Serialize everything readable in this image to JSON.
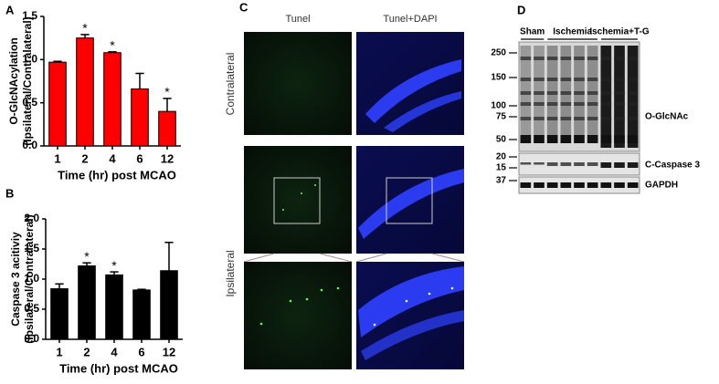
{
  "chart_data": [
    {
      "type": "bar",
      "panel": "A",
      "ylabel": [
        "O-GlcNAcylation",
        "(Ipsilateral/Contralateral)"
      ],
      "xlabel": "Time (hr) post MCAO",
      "categories": [
        "1",
        "2",
        "4",
        "6",
        "12"
      ],
      "values": [
        0.97,
        1.25,
        1.08,
        0.66,
        0.4
      ],
      "errors": [
        0.01,
        0.04,
        0.01,
        0.18,
        0.15
      ],
      "color": "#ff0000",
      "ylim": [
        0,
        1.5
      ],
      "yticks": [
        {
          "value": 0,
          "label": "0.0"
        },
        {
          "value": 0.5,
          "label": "0.5"
        },
        {
          "value": 1,
          "label": "1.0"
        },
        {
          "value": 1.5,
          "label": "1.5"
        }
      ],
      "annotations": [
        {
          "text": "*",
          "category": "2"
        },
        {
          "text": "*",
          "category": "4"
        },
        {
          "text": "*",
          "category": "12"
        }
      ]
    },
    {
      "type": "bar",
      "panel": "B",
      "ylabel": [
        "Caspase 3 acitiviy",
        "(Ipsilateral/Contralateral)"
      ],
      "xlabel": "Time (hr) post MCAO",
      "categories": [
        "1",
        "2",
        "4",
        "6",
        "12"
      ],
      "values": [
        0.84,
        1.22,
        1.07,
        0.82,
        1.14
      ],
      "errors": [
        0.08,
        0.05,
        0.05,
        0.01,
        0.47
      ],
      "color": "#000000",
      "ylim": [
        0,
        2
      ],
      "yticks": [
        {
          "value": 0,
          "label": "0.0"
        },
        {
          "value": 0.5,
          "label": "0.5"
        },
        {
          "value": 1,
          "label": "1.0"
        },
        {
          "value": 1.5,
          "label": "1.5"
        },
        {
          "value": 2,
          "label": "2.0"
        }
      ],
      "annotations": [
        {
          "text": "*",
          "category": "2"
        },
        {
          "text": "*",
          "category": "4"
        }
      ]
    }
  ],
  "panel_c": {
    "panel": "C",
    "columns": [
      "Tunel",
      "Tunel+DAPI"
    ],
    "rows": [
      "Contralateral",
      "Ipsilateral"
    ]
  },
  "panel_d": {
    "panel": "D",
    "groups": [
      "Sham",
      "Ischemia",
      "Ischemia+T-G"
    ],
    "markers": [
      "250",
      "150",
      "100",
      "75",
      "50",
      "20",
      "15",
      "37"
    ],
    "blots": [
      "O-GlcNAc",
      "C-Caspase 3",
      "GAPDH"
    ]
  }
}
